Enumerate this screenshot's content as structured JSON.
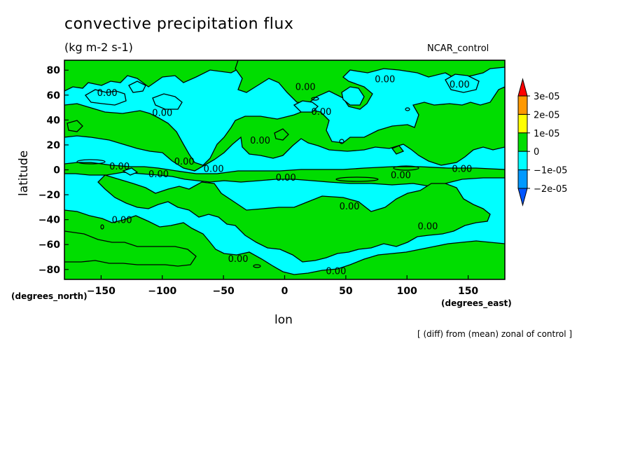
{
  "chart_data": {
    "type": "heatmap",
    "title": "convective precipitation flux",
    "units": "(kg m-2 s-1)",
    "dataset": "NCAR_control",
    "xlabel": "lon",
    "ylabel": "latitude",
    "xunits": "(degrees_east)",
    "yunits": "(degrees_north)",
    "footnote": "[ (diff) from (mean) zonal of control ]",
    "xlim": [
      -180,
      180
    ],
    "ylim": [
      -88,
      88
    ],
    "xticks": [
      -150,
      -100,
      -50,
      0,
      50,
      100,
      150
    ],
    "yticks": [
      80,
      60,
      40,
      20,
      0,
      -20,
      -40,
      -60,
      -80
    ],
    "colorbar": {
      "levels": [
        "3e-05",
        "2e-05",
        "1e-05",
        "0",
        "−1e-05",
        "−2e-05"
      ],
      "colors": [
        "#ff0000",
        "#ff9900",
        "#ffff00",
        "#00dd00",
        "#00ffff",
        "#0099ff",
        "#0055ff"
      ]
    },
    "contour_labels": [
      {
        "lon": -145,
        "lat": 62,
        "text": "0.00"
      },
      {
        "lon": -100,
        "lat": 46,
        "text": "0.00"
      },
      {
        "lon": 17,
        "lat": 67,
        "text": "0.00"
      },
      {
        "lon": 30,
        "lat": 47,
        "text": "0.00"
      },
      {
        "lon": 82,
        "lat": 73,
        "text": "0.00"
      },
      {
        "lon": 143,
        "lat": 69,
        "text": "0.00"
      },
      {
        "lon": -20,
        "lat": 24,
        "text": "0.00"
      },
      {
        "lon": -82,
        "lat": 7,
        "text": "0.00"
      },
      {
        "lon": -135,
        "lat": 3,
        "text": "0.00"
      },
      {
        "lon": -103,
        "lat": -3,
        "text": "0.00"
      },
      {
        "lon": -58,
        "lat": 1,
        "text": "0.00"
      },
      {
        "lon": 1,
        "lat": -6,
        "text": "0.00"
      },
      {
        "lon": 95,
        "lat": -4,
        "text": "0.00"
      },
      {
        "lon": 145,
        "lat": 1,
        "text": "0.00"
      },
      {
        "lon": 53,
        "lat": -29,
        "text": "0.00"
      },
      {
        "lon": -133,
        "lat": -40,
        "text": "0.00"
      },
      {
        "lon": 117,
        "lat": -45,
        "text": "0.00"
      },
      {
        "lon": -38,
        "lat": -71,
        "text": "0.00"
      },
      {
        "lon": 42,
        "lat": -81,
        "text": "0.00"
      }
    ]
  }
}
